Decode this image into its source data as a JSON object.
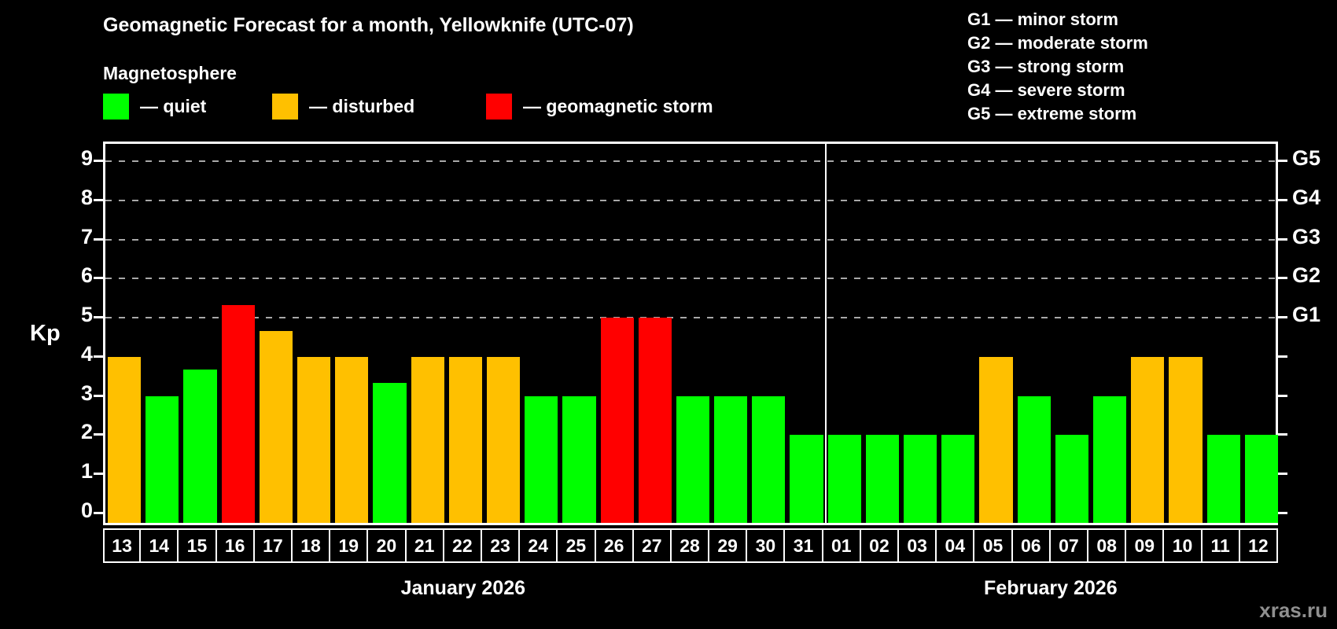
{
  "title": "Geomagnetic Forecast for a month, Yellowknife (UTC-07)",
  "legend": {
    "heading": "Magnetosphere",
    "items": [
      {
        "key": "quiet",
        "label": "— quiet",
        "color": "#00ff00"
      },
      {
        "key": "disturbed",
        "label": "— disturbed",
        "color": "#ffc000"
      },
      {
        "key": "storm",
        "label": "— geomagnetic storm",
        "color": "#ff0000"
      }
    ]
  },
  "storm_scale_legend": [
    "G1 — minor storm",
    "G2 — moderate storm",
    "G3 — strong storm",
    "G4 — severe storm",
    "G5 — extreme storm"
  ],
  "watermark": "xras.ru",
  "chart_data": {
    "type": "bar",
    "ylabel": "Kp",
    "ylim": [
      0,
      9
    ],
    "yticks": [
      0,
      1,
      2,
      3,
      4,
      5,
      6,
      7,
      8,
      9
    ],
    "gridlines": [
      5,
      6,
      7,
      8,
      9
    ],
    "right_axis_labels": [
      {
        "level": 5,
        "label": "G1"
      },
      {
        "level": 6,
        "label": "G2"
      },
      {
        "level": 7,
        "label": "G3"
      },
      {
        "level": 8,
        "label": "G4"
      },
      {
        "level": 9,
        "label": "G5"
      }
    ],
    "months": [
      {
        "label": "January 2026",
        "days": 19
      },
      {
        "label": "February 2026",
        "days": 12
      }
    ],
    "categories": [
      "13",
      "14",
      "15",
      "16",
      "17",
      "18",
      "19",
      "20",
      "21",
      "22",
      "23",
      "24",
      "25",
      "26",
      "27",
      "28",
      "29",
      "30",
      "31",
      "01",
      "02",
      "03",
      "04",
      "05",
      "06",
      "07",
      "08",
      "09",
      "10",
      "11",
      "12"
    ],
    "values": [
      4,
      3,
      3.67,
      5.33,
      4.67,
      4,
      4,
      3.33,
      4,
      4,
      4,
      3,
      3,
      5,
      5,
      3,
      3,
      3,
      2,
      2,
      2,
      2,
      2,
      4,
      3,
      2,
      3,
      4,
      4,
      2,
      2
    ],
    "states": [
      "disturbed",
      "quiet",
      "quiet",
      "storm",
      "disturbed",
      "disturbed",
      "disturbed",
      "quiet",
      "disturbed",
      "disturbed",
      "disturbed",
      "quiet",
      "quiet",
      "storm",
      "storm",
      "quiet",
      "quiet",
      "quiet",
      "quiet",
      "quiet",
      "quiet",
      "quiet",
      "quiet",
      "disturbed",
      "quiet",
      "quiet",
      "quiet",
      "disturbed",
      "disturbed",
      "quiet",
      "quiet"
    ],
    "colors": {
      "quiet": "#00ff00",
      "disturbed": "#ffc000",
      "storm": "#ff0000"
    }
  }
}
